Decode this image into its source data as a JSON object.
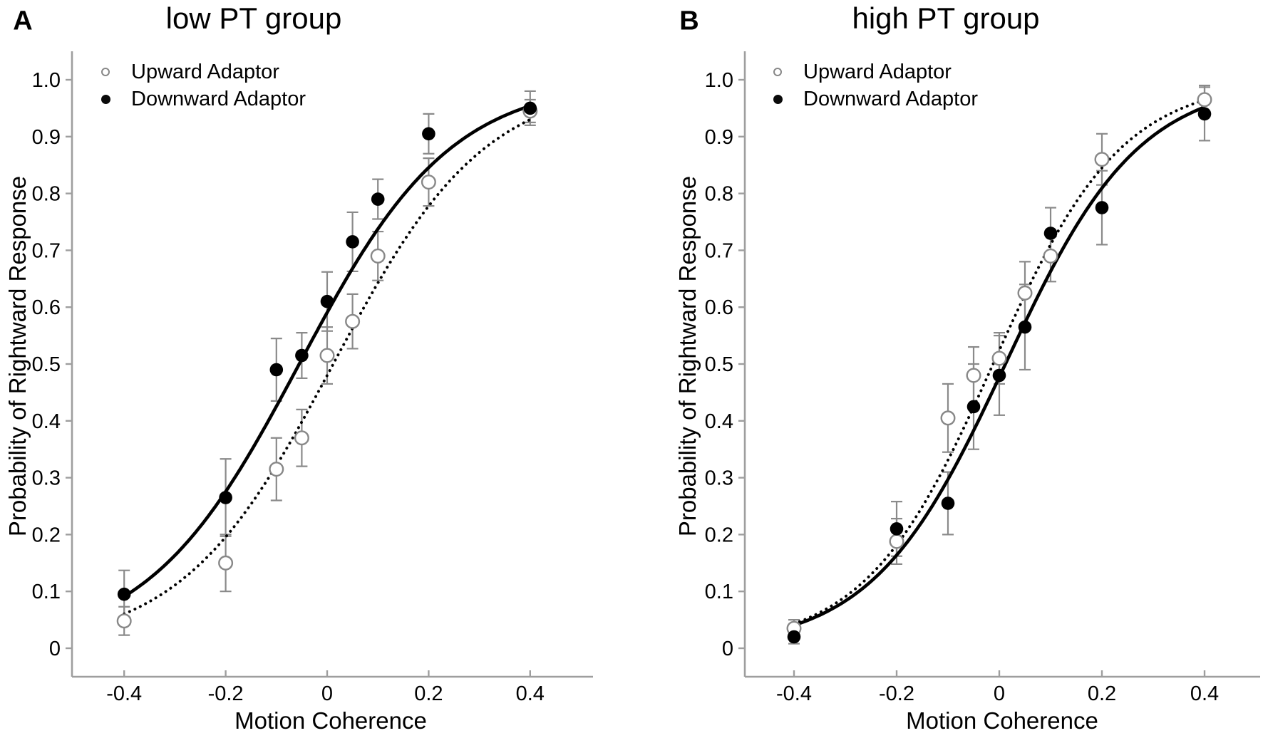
{
  "figure": {
    "background": "#ffffff",
    "colors": {
      "curve": "#000000",
      "marker": "#000000",
      "open_marker_stroke": "#888888",
      "error_bar": "#8a8a8a",
      "axis": "#9e9e9e",
      "text": "#000000"
    }
  },
  "chart_data": [
    {
      "type": "scatter",
      "panel_label": "A",
      "title": "low PT group",
      "xlabel": "Motion Coherence",
      "ylabel": "Probability of Rightward Response",
      "xlim": [
        -0.5,
        0.52
      ],
      "ylim": [
        0,
        1.05
      ],
      "grid": false,
      "legend_position": "top-left",
      "xticks": [
        -0.4,
        -0.2,
        0,
        0.2,
        0.4
      ],
      "xtick_labels": [
        "-0.4",
        "-0.2",
        "0",
        "0.2",
        "0.4"
      ],
      "ytick_labels": [
        "0",
        "0.1",
        "0.2",
        "0.3",
        "0.4",
        "0.5",
        "0.6",
        "0.7",
        "0.8",
        "0.9",
        "1.0"
      ],
      "x": [
        -0.4,
        -0.2,
        -0.1,
        -0.05,
        0,
        0.05,
        0.1,
        0.2,
        0.4
      ],
      "series": [
        {
          "name": "Upward Adaptor",
          "marker": "open-circle",
          "line": "dotted",
          "values": [
            0.048,
            0.15,
            0.315,
            0.37,
            0.515,
            0.575,
            0.69,
            0.82,
            0.945
          ],
          "errors": [
            0.025,
            0.05,
            0.055,
            0.05,
            0.05,
            0.048,
            0.043,
            0.042,
            0.02
          ],
          "fit": {
            "type": "logistic",
            "x0": 0.012,
            "slope": 0.15
          }
        },
        {
          "name": "Downward Adaptor",
          "marker": "filled-circle",
          "line": "solid",
          "values": [
            0.095,
            0.265,
            0.49,
            0.515,
            0.61,
            0.715,
            0.79,
            0.905,
            0.95
          ],
          "errors": [
            0.042,
            0.068,
            0.055,
            0.04,
            0.052,
            0.052,
            0.035,
            0.035,
            0.03
          ],
          "fit": {
            "type": "logistic",
            "x0": -0.055,
            "slope": 0.15
          }
        }
      ]
    },
    {
      "type": "scatter",
      "panel_label": "B",
      "title": "high PT group",
      "xlabel": "Motion Coherence",
      "ylabel": "Probability of Rightward Response",
      "xlim": [
        -0.5,
        0.52
      ],
      "ylim": [
        0,
        1.05
      ],
      "grid": false,
      "legend_position": "top-left",
      "xticks": [
        -0.4,
        -0.2,
        0,
        0.2,
        0.4
      ],
      "xtick_labels": [
        "-0.4",
        "-0.2",
        "0",
        "0.2",
        "0.4"
      ],
      "ytick_labels": [
        "0",
        "0.1",
        "0.2",
        "0.3",
        "0.4",
        "0.5",
        "0.6",
        "0.7",
        "0.8",
        "0.9",
        "1.0"
      ],
      "x": [
        -0.4,
        -0.2,
        -0.1,
        -0.05,
        0,
        0.05,
        0.1,
        0.2,
        0.4
      ],
      "series": [
        {
          "name": "Upward Adaptor",
          "marker": "open-circle",
          "line": "dotted",
          "values": [
            0.035,
            0.188,
            0.405,
            0.48,
            0.51,
            0.625,
            0.69,
            0.86,
            0.965
          ],
          "errors": [
            0.015,
            0.04,
            0.06,
            0.05,
            0.045,
            0.055,
            0.045,
            0.045,
            0.025
          ],
          "fit": {
            "type": "logistic",
            "x0": -0.012,
            "slope": 0.125
          }
        },
        {
          "name": "Downward Adaptor",
          "marker": "filled-circle",
          "line": "solid",
          "values": [
            0.02,
            0.21,
            0.255,
            0.425,
            0.48,
            0.565,
            0.73,
            0.775,
            0.94
          ],
          "errors": [
            0.012,
            0.048,
            0.055,
            0.075,
            0.07,
            0.075,
            0.045,
            0.065,
            0.047
          ],
          "fit": {
            "type": "logistic",
            "x0": 0.012,
            "slope": 0.13
          }
        }
      ]
    }
  ]
}
